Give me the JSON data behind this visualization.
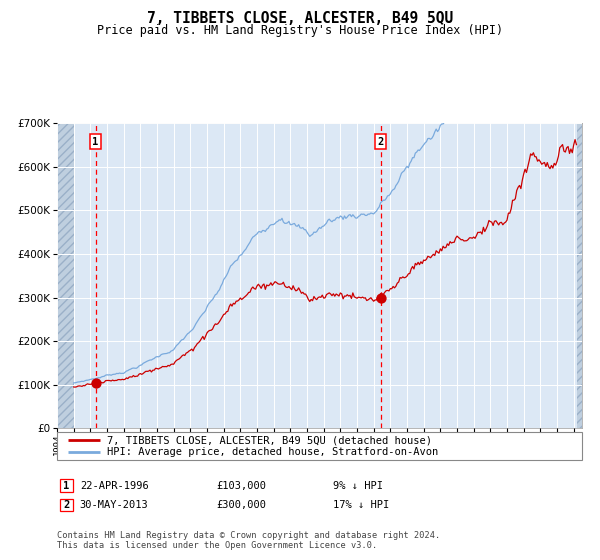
{
  "title": "7, TIBBETS CLOSE, ALCESTER, B49 5QU",
  "subtitle": "Price paid vs. HM Land Registry's House Price Index (HPI)",
  "legend_label_red": "7, TIBBETS CLOSE, ALCESTER, B49 5QU (detached house)",
  "legend_label_blue": "HPI: Average price, detached house, Stratford-on-Avon",
  "annotation1_label": "1",
  "annotation1_date": "22-APR-1996",
  "annotation1_price": "£103,000",
  "annotation1_hpi": "9% ↓ HPI",
  "annotation2_label": "2",
  "annotation2_date": "30-MAY-2013",
  "annotation2_price": "£300,000",
  "annotation2_hpi": "17% ↓ HPI",
  "footnote": "Contains HM Land Registry data © Crown copyright and database right 2024.\nThis data is licensed under the Open Government Licence v3.0.",
  "sale1_year": 1996.31,
  "sale1_value": 103000,
  "sale2_year": 2013.41,
  "sale2_value": 300000,
  "hpi_color": "#7aaadd",
  "price_color": "#cc0000",
  "dot_color": "#cc0000",
  "plot_bg": "#dce8f5",
  "grid_color": "#ffffff",
  "hatch_color": "#bfcfdf",
  "fig_bg": "#ffffff",
  "ylim_max": 700000,
  "ylim_min": 0,
  "xlim_min": 1994.0,
  "xlim_max": 2025.5,
  "data_start": 1995.0,
  "data_end": 2025.25
}
